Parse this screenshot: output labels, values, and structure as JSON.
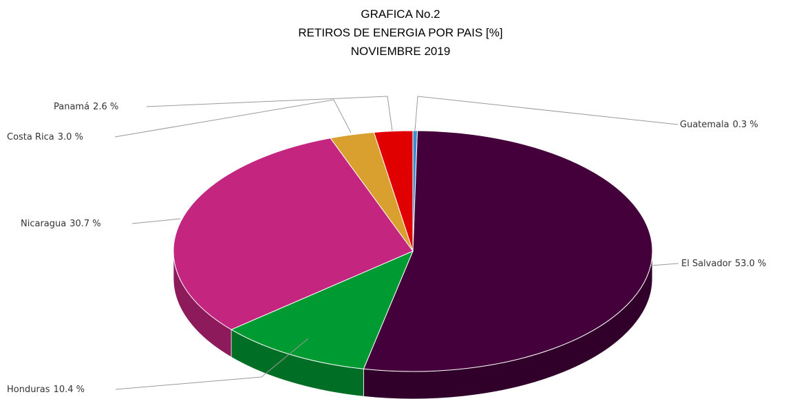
{
  "chart_data": {
    "type": "pie3d",
    "title": [
      "GRAFICA No.2",
      "RETIROS DE ENERGIA POR PAIS [%]",
      "NOVIEMBRE 2019"
    ],
    "categories": [
      "Guatemala",
      "El Salvador",
      "Honduras",
      "Nicaragua",
      "Costa Rica",
      "Panamá"
    ],
    "values": [
      0.3,
      53.0,
      10.4,
      30.7,
      3.0,
      2.6
    ],
    "value_labels": [
      "0.3 %",
      "53.0 %",
      "10.4 %",
      "30.7 %",
      "3.0 %",
      "2.6 %"
    ],
    "colors": [
      "#3a8fd1",
      "#44003a",
      "#009a33",
      "#c4257f",
      "#d9a030",
      "#e00000"
    ]
  }
}
